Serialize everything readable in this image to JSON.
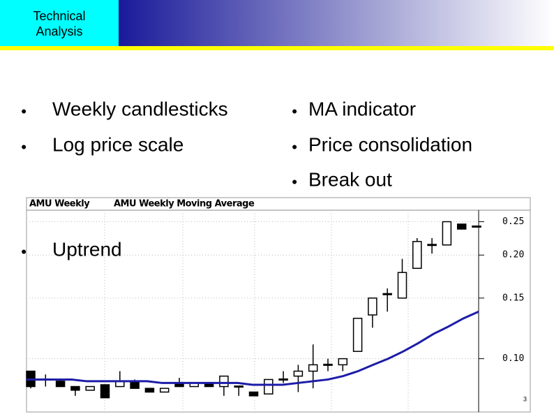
{
  "header": {
    "title": "Technical\nAnalysis"
  },
  "bullets": [
    "Weekly candlesticks",
    "Log price scale",
    "MA indicator",
    "Price consolidation",
    "Break out",
    "Uptrend"
  ],
  "page_number": "3",
  "chart_data": {
    "type": "candlestick",
    "log_scale": true,
    "grid": true,
    "ylim": [
      0.07,
      0.27
    ],
    "yticks": [
      {
        "value": 0.1,
        "label": "0.10"
      },
      0.15,
      {
        "value": 0.2,
        "label": "0.20"
      },
      0.25
    ],
    "series": [
      {
        "name": "AMU Weekly",
        "color": "#000000",
        "open": [
          0.092,
          0.087,
          0.086,
          0.083,
          0.081,
          0.084,
          0.083,
          0.086,
          0.082,
          0.08,
          0.085,
          0.083,
          0.085,
          0.083,
          0.083,
          0.08,
          0.079,
          0.087,
          0.089,
          0.092,
          0.096,
          0.096,
          0.105,
          0.134,
          0.154,
          0.15,
          0.183,
          0.214,
          0.214,
          0.246,
          0.242
        ],
        "high": [
          0.092,
          0.09,
          0.087,
          0.083,
          0.083,
          0.084,
          0.092,
          0.087,
          0.082,
          0.082,
          0.088,
          0.085,
          0.085,
          0.089,
          0.083,
          0.08,
          0.087,
          0.092,
          0.096,
          0.11,
          0.1,
          0.1,
          0.131,
          0.15,
          0.16,
          0.195,
          0.224,
          0.224,
          0.25,
          0.246,
          0.242
        ],
        "low": [
          0.082,
          0.083,
          0.083,
          0.078,
          0.081,
          0.077,
          0.083,
          0.082,
          0.08,
          0.08,
          0.083,
          0.083,
          0.083,
          0.078,
          0.078,
          0.078,
          0.079,
          0.085,
          0.08,
          0.082,
          0.092,
          0.092,
          0.105,
          0.123,
          0.137,
          0.15,
          0.183,
          0.202,
          0.214,
          0.238,
          0.242
        ],
        "close": [
          0.083,
          0.087,
          0.083,
          0.081,
          0.083,
          0.077,
          0.086,
          0.082,
          0.08,
          0.082,
          0.083,
          0.085,
          0.083,
          0.089,
          0.083,
          0.078,
          0.087,
          0.087,
          0.092,
          0.096,
          0.096,
          0.1,
          0.131,
          0.15,
          0.154,
          0.178,
          0.219,
          0.214,
          0.25,
          0.238,
          0.242
        ]
      },
      {
        "name": "AMU Weekly Moving Average",
        "color": "#1c1ca8",
        "values": [
          0.087,
          0.087,
          0.087,
          0.087,
          0.086,
          0.086,
          0.086,
          0.086,
          0.086,
          0.085,
          0.085,
          0.085,
          0.085,
          0.085,
          0.085,
          0.084,
          0.084,
          0.084,
          0.085,
          0.086,
          0.087,
          0.089,
          0.092,
          0.096,
          0.1,
          0.105,
          0.111,
          0.118,
          0.124,
          0.131,
          0.137
        ]
      }
    ]
  }
}
